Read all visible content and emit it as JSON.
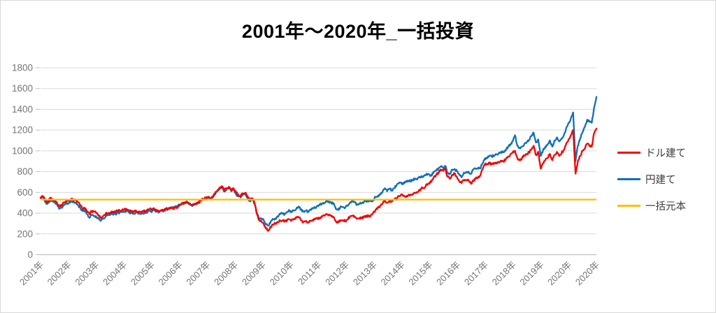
{
  "title": "2001年～2020年_一括投資",
  "legend": {
    "position": "right",
    "items": [
      {
        "label": "ドル建て",
        "color": "#f40000"
      },
      {
        "label": "円建て",
        "color": "#1170b8"
      },
      {
        "label": "一括元本",
        "color": "#ffc000"
      }
    ]
  },
  "style": {
    "background": "#ffffff",
    "border": "#d8d8d8",
    "gridline": "#d9d9d9",
    "axis": "#bfbfbf",
    "tick_text": "#757575",
    "title_color": "#000000",
    "legend_text": "#3b3b3b"
  },
  "chart_data": {
    "type": "line",
    "title": "2001年～2020年_一括投資",
    "xlabel": "",
    "ylabel": "",
    "ylim": [
      0,
      1800
    ],
    "yticks": [
      0,
      200,
      400,
      600,
      800,
      1000,
      1200,
      1400,
      1600,
      1800
    ],
    "grid": "horizontal",
    "legend_position": "right",
    "x_tick_labels": [
      "2001年",
      "2002年",
      "2003年",
      "2004年",
      "2005年",
      "2006年",
      "2007年",
      "2008年",
      "2009年",
      "2010年",
      "2011年",
      "2012年",
      "2013年",
      "2014年",
      "2015年",
      "2016年",
      "2017年",
      "2018年",
      "2019年",
      "2020年",
      "2020年"
    ],
    "x_resolution": "monthly, 2001-01 to 2020-12 (240 points per series)",
    "principal_value": 530,
    "series": [
      {
        "name": "ドル建て",
        "color": "#f40000",
        "values": [
          550,
          565,
          520,
          500,
          545,
          535,
          520,
          505,
          465,
          480,
          500,
          515,
          520,
          535,
          530,
          525,
          505,
          480,
          445,
          450,
          410,
          390,
          420,
          415,
          400,
          380,
          355,
          375,
          395,
          400,
          405,
          415,
          410,
          420,
          425,
          430,
          435,
          440,
          430,
          420,
          415,
          425,
          415,
          410,
          415,
          420,
          430,
          440,
          435,
          440,
          425,
          420,
          425,
          430,
          445,
          440,
          455,
          445,
          450,
          460,
          480,
          490,
          495,
          510,
          495,
          480,
          485,
          495,
          505,
          525,
          535,
          545,
          555,
          545,
          560,
          590,
          620,
          645,
          660,
          620,
          640,
          655,
          620,
          640,
          600,
          580,
          565,
          590,
          595,
          560,
          530,
          545,
          500,
          390,
          330,
          320,
          295,
          250,
          230,
          270,
          290,
          300,
          310,
          330,
          330,
          320,
          330,
          340,
          335,
          340,
          355,
          365,
          330,
          315,
          320,
          310,
          325,
          335,
          340,
          350,
          355,
          365,
          375,
          390,
          380,
          370,
          365,
          320,
          310,
          330,
          330,
          325,
          340,
          365,
          375,
          370,
          345,
          350,
          355,
          360,
          370,
          370,
          380,
          400,
          430,
          450,
          470,
          490,
          530,
          500,
          520,
          510,
          530,
          545,
          565,
          580,
          570,
          555,
          570,
          580,
          585,
          595,
          600,
          620,
          650,
          640,
          680,
          690,
          700,
          745,
          765,
          790,
          820,
          810,
          830,
          750,
          730,
          770,
          780,
          750,
          710,
          690,
          720,
          715,
          720,
          685,
          710,
          730,
          740,
          760,
          820,
          870,
          875,
          880,
          870,
          875,
          885,
          890,
          905,
          895,
          920,
          945,
          965,
          985,
          1000,
          930,
          910,
          930,
          955,
          965,
          985,
          1015,
          1050,
          960,
          990,
          830,
          880,
          910,
          930,
          970,
          910,
          960,
          990,
          950,
          980,
          1010,
          1070,
          1110,
          1150,
          1200,
          780,
          900,
          950,
          1000,
          1020,
          1070,
          1050,
          1040,
          1170,
          1215
        ]
      },
      {
        "name": "円建て",
        "color": "#1170b8",
        "values": [
          545,
          550,
          505,
          490,
          525,
          515,
          505,
          490,
          440,
          455,
          475,
          490,
          495,
          510,
          515,
          500,
          480,
          455,
          420,
          430,
          390,
          355,
          385,
          375,
          365,
          350,
          330,
          350,
          370,
          380,
          385,
          395,
          390,
          400,
          405,
          410,
          415,
          420,
          410,
          400,
          395,
          405,
          395,
          390,
          395,
          400,
          410,
          420,
          420,
          425,
          415,
          410,
          420,
          425,
          440,
          440,
          455,
          450,
          460,
          470,
          485,
          490,
          495,
          510,
          490,
          475,
          480,
          490,
          500,
          520,
          530,
          540,
          550,
          540,
          550,
          580,
          610,
          635,
          650,
          610,
          630,
          645,
          610,
          625,
          585,
          565,
          550,
          575,
          580,
          545,
          515,
          530,
          490,
          400,
          350,
          345,
          330,
          295,
          280,
          320,
          340,
          350,
          365,
          390,
          400,
          390,
          410,
          425,
          415,
          425,
          445,
          465,
          430,
          415,
          425,
          415,
          435,
          450,
          455,
          470,
          480,
          495,
          500,
          520,
          510,
          500,
          495,
          440,
          430,
          465,
          460,
          455,
          470,
          500,
          520,
          510,
          480,
          490,
          495,
          505,
          515,
          510,
          515,
          525,
          555,
          565,
          585,
          600,
          640,
          610,
          635,
          620,
          640,
          665,
          685,
          695,
          680,
          700,
          705,
          710,
          720,
          730,
          725,
          750,
          755,
          760,
          780,
          775,
          760,
          800,
          810,
          825,
          850,
          840,
          855,
          785,
          775,
          820,
          825,
          805,
          775,
          745,
          790,
          795,
          800,
          780,
          820,
          830,
          835,
          830,
          880,
          925,
          935,
          950,
          945,
          955,
          965,
          975,
          990,
          985,
          1010,
          1040,
          1060,
          1090,
          1150,
          1050,
          1030,
          1040,
          1065,
          1080,
          1105,
          1140,
          1175,
          1080,
          1110,
          950,
          1000,
          1040,
          1060,
          1100,
          1040,
          1100,
          1130,
          1090,
          1120,
          1150,
          1220,
          1270,
          1310,
          1370,
          900,
          1050,
          1120,
          1180,
          1230,
          1300,
          1280,
          1270,
          1420,
          1520
        ]
      },
      {
        "name": "一括元本",
        "color": "#ffc000",
        "constant": 530
      }
    ]
  }
}
